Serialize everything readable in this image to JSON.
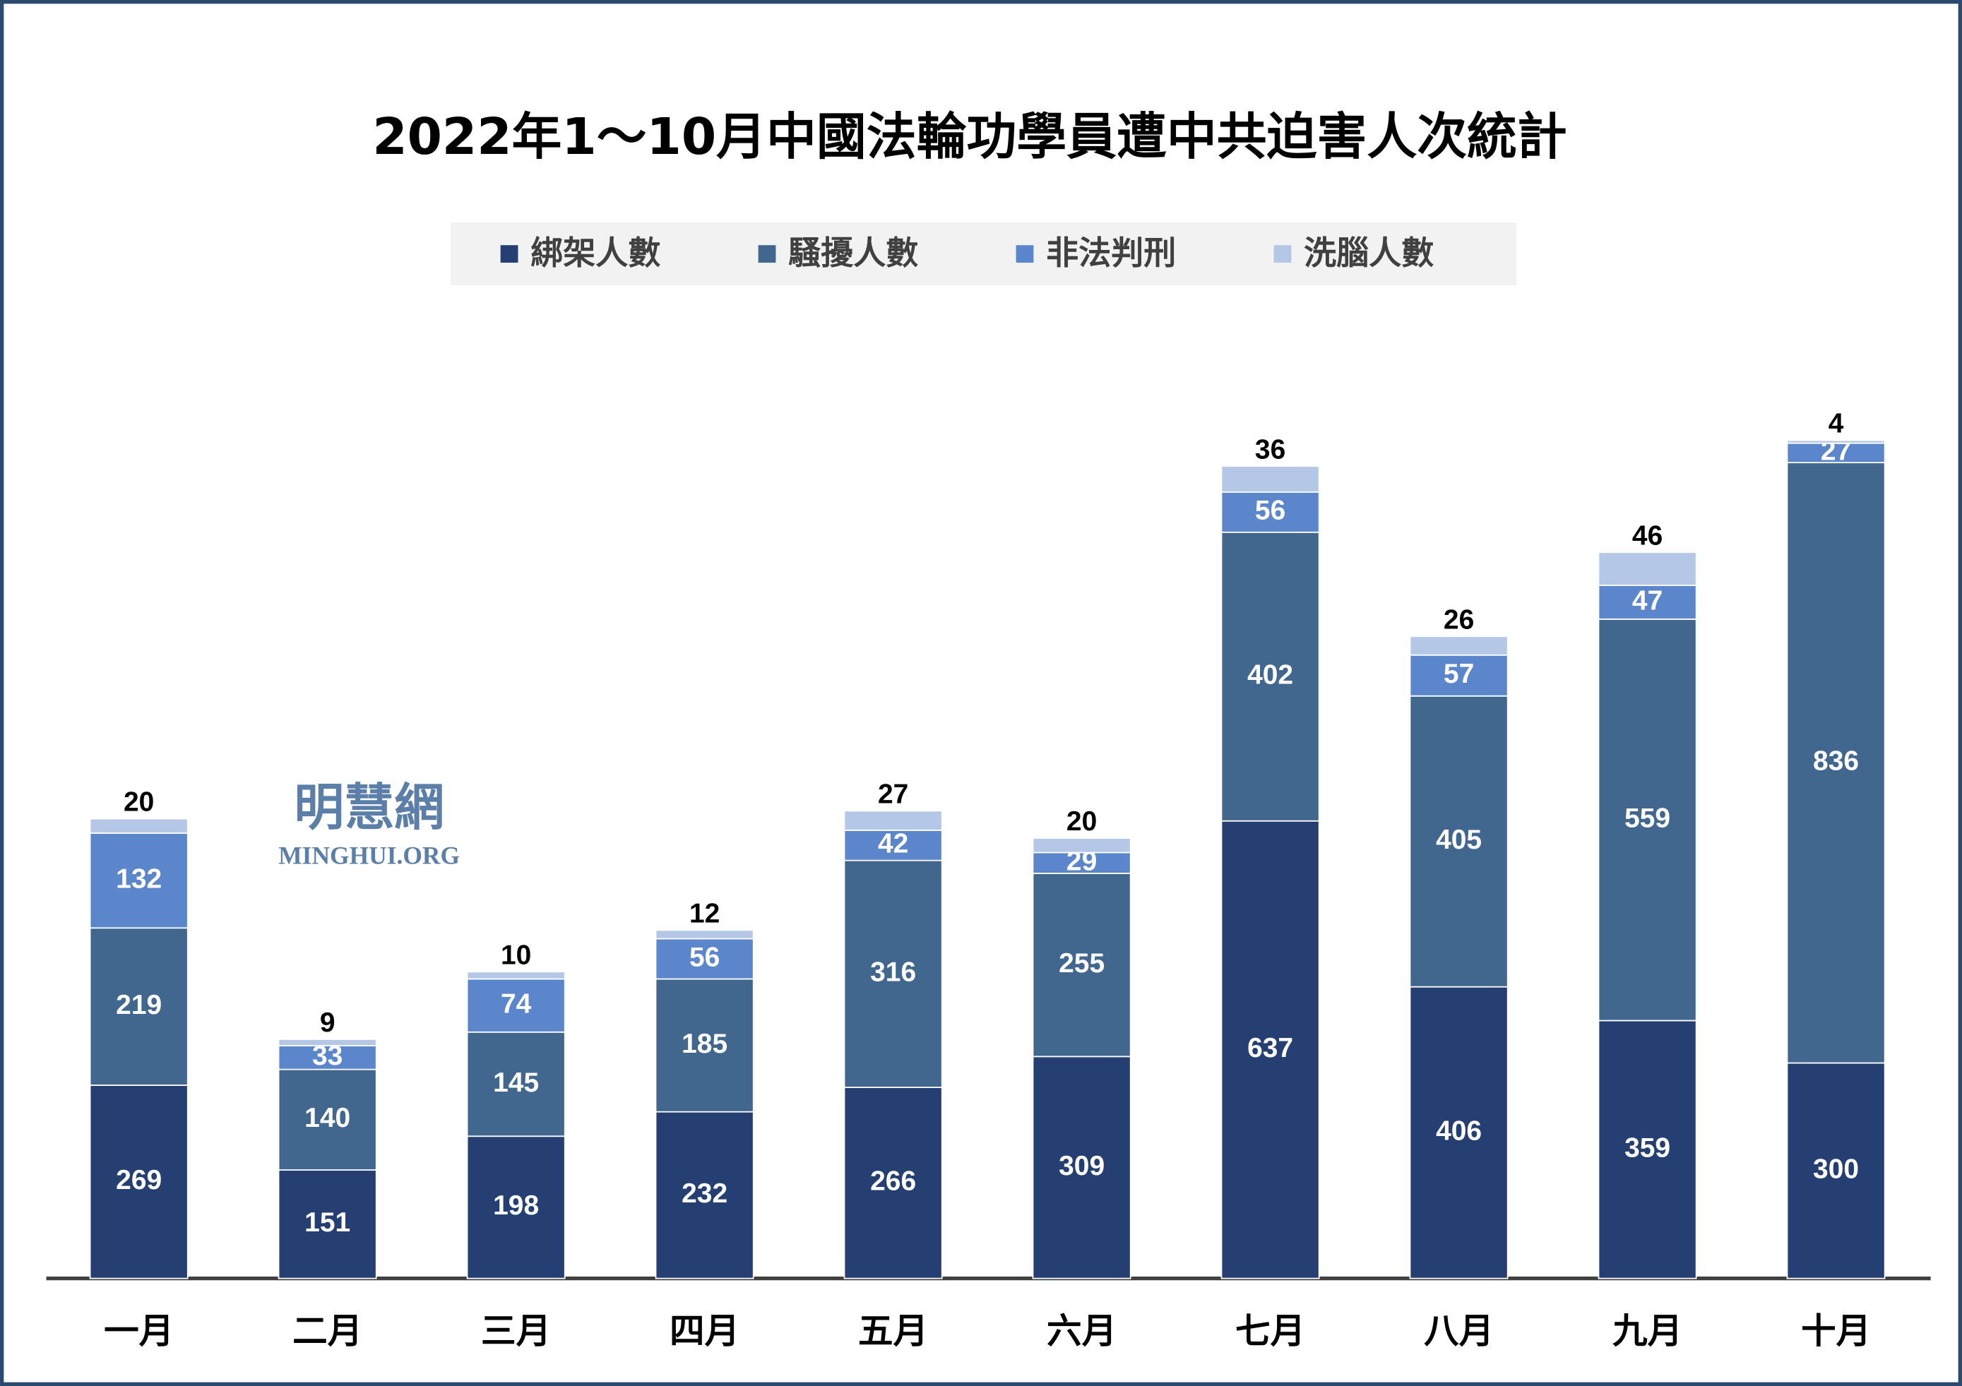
{
  "chart_data": {
    "type": "stacked_bar",
    "title": "2022年1～10月中國法輪功學員遭中共迫害人次統計",
    "watermark": {
      "name": "明慧網",
      "site": "MINGHUI.ORG"
    },
    "categories": [
      "一月",
      "二月",
      "三月",
      "四月",
      "五月",
      "六月",
      "七月",
      "八月",
      "九月",
      "十月"
    ],
    "series": [
      {
        "name": "綁架人數",
        "color": "#253f73",
        "values": [
          269,
          151,
          198,
          232,
          266,
          309,
          637,
          406,
          359,
          300
        ]
      },
      {
        "name": "騷擾人數",
        "color": "#41678f",
        "values": [
          219,
          140,
          145,
          185,
          316,
          255,
          402,
          405,
          559,
          836
        ]
      },
      {
        "name": "非法判刑",
        "color": "#5b86cc",
        "values": [
          132,
          33,
          74,
          56,
          42,
          29,
          56,
          57,
          47,
          27
        ]
      },
      {
        "name": "洗腦人數",
        "color": "#b4c7e7",
        "values": [
          20,
          9,
          10,
          12,
          27,
          20,
          36,
          26,
          46,
          4
        ]
      }
    ],
    "legend": "top"
  }
}
